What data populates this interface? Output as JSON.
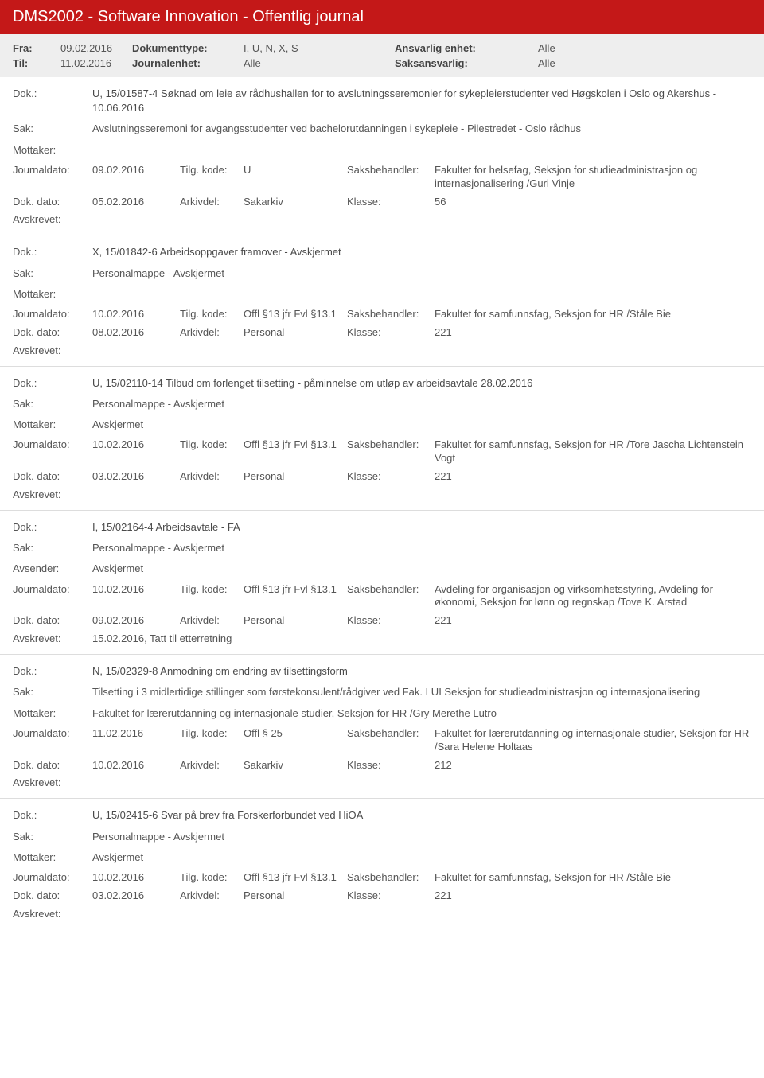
{
  "header": {
    "title": "DMS2002 - Software Innovation - Offentlig journal"
  },
  "filters": {
    "fra_label": "Fra:",
    "fra_value": "09.02.2016",
    "til_label": "Til:",
    "til_value": "11.02.2016",
    "doktype_label": "Dokumenttype:",
    "doktype_value": "I, U, N, X, S",
    "journalenhet_label": "Journalenhet:",
    "journalenhet_value": "Alle",
    "ansvarlig_label": "Ansvarlig enhet:",
    "ansvarlig_value": "Alle",
    "saksansvarlig_label": "Saksansvarlig:",
    "saksansvarlig_value": "Alle"
  },
  "labels": {
    "dok": "Dok.:",
    "sak": "Sak:",
    "mottaker": "Mottaker:",
    "avsender": "Avsender:",
    "journaldato": "Journaldato:",
    "tilgkode": "Tilg. kode:",
    "saksbehandler": "Saksbehandler:",
    "dokdato": "Dok. dato:",
    "arkivdel": "Arkivdel:",
    "klasse": "Klasse:",
    "avskrevet": "Avskrevet:"
  },
  "entries": [
    {
      "dok": "U, 15/01587-4 Søknad om leie av rådhushallen for to avslutningsseremonier for sykepleierstudenter ved Høgskolen i Oslo og Akershus - 10.06.2016",
      "sak": "Avslutningsseremoni for avgangsstudenter ved bachelorutdanningen i sykepleie - Pilestredet - Oslo rådhus",
      "party_label": "mottaker",
      "party_value": "",
      "journaldato": "09.02.2016",
      "tilgkode": "U",
      "saksbehandler": "Fakultet for helsefag, Seksjon for studieadministrasjon og internasjonalisering /Guri Vinje",
      "dokdato": "05.02.2016",
      "arkivdel": "Sakarkiv",
      "klasse": "56",
      "avskrevet": ""
    },
    {
      "dok": "X, 15/01842-6 Arbeidsoppgaver framover - Avskjermet",
      "sak": "Personalmappe - Avskjermet",
      "party_label": "mottaker",
      "party_value": "",
      "journaldato": "10.02.2016",
      "tilgkode": "Offl §13 jfr Fvl §13.1",
      "saksbehandler": "Fakultet for samfunnsfag, Seksjon for HR /Ståle Bie",
      "dokdato": "08.02.2016",
      "arkivdel": "Personal",
      "klasse": "221",
      "avskrevet": ""
    },
    {
      "dok": "U, 15/02110-14 Tilbud om forlenget tilsetting - påminnelse om utløp av arbeidsavtale 28.02.2016",
      "sak": "Personalmappe - Avskjermet",
      "party_label": "mottaker",
      "party_value": "Avskjermet",
      "journaldato": "10.02.2016",
      "tilgkode": "Offl §13 jfr Fvl §13.1",
      "saksbehandler": "Fakultet for samfunnsfag, Seksjon for HR /Tore Jascha Lichtenstein Vogt",
      "dokdato": "03.02.2016",
      "arkivdel": "Personal",
      "klasse": "221",
      "avskrevet": ""
    },
    {
      "dok": "I, 15/02164-4 Arbeidsavtale - FA",
      "sak": "Personalmappe - Avskjermet",
      "party_label": "avsender",
      "party_value": "Avskjermet",
      "journaldato": "10.02.2016",
      "tilgkode": "Offl §13 jfr Fvl §13.1",
      "saksbehandler": "Avdeling for organisasjon og virksomhetsstyring, Avdeling for økonomi, Seksjon for lønn og regnskap /Tove K. Arstad",
      "dokdato": "09.02.2016",
      "arkivdel": "Personal",
      "klasse": "221",
      "avskrevet": "15.02.2016, Tatt til etterretning"
    },
    {
      "dok": "N, 15/02329-8 Anmodning om endring av tilsettingsform",
      "sak": "Tilsetting i 3 midlertidige stillinger som førstekonsulent/rådgiver ved Fak. LUI Seksjon for studieadministrasjon og internasjonalisering",
      "party_label": "mottaker",
      "party_value": "Fakultet for lærerutdanning og internasjonale studier, Seksjon for HR /Gry Merethe Lutro",
      "journaldato": "11.02.2016",
      "tilgkode": "Offl § 25",
      "saksbehandler": "Fakultet for lærerutdanning og internasjonale studier, Seksjon for HR /Sara Helene Holtaas",
      "dokdato": "10.02.2016",
      "arkivdel": "Sakarkiv",
      "klasse": "212",
      "avskrevet": ""
    },
    {
      "dok": "U, 15/02415-6 Svar på brev fra Forskerforbundet ved HiOA",
      "sak": "Personalmappe - Avskjermet",
      "party_label": "mottaker",
      "party_value": "Avskjermet",
      "journaldato": "10.02.2016",
      "tilgkode": "Offl §13 jfr Fvl §13.1",
      "saksbehandler": "Fakultet for samfunnsfag, Seksjon for HR /Ståle Bie",
      "dokdato": "03.02.2016",
      "arkivdel": "Personal",
      "klasse": "221",
      "avskrevet": ""
    }
  ]
}
